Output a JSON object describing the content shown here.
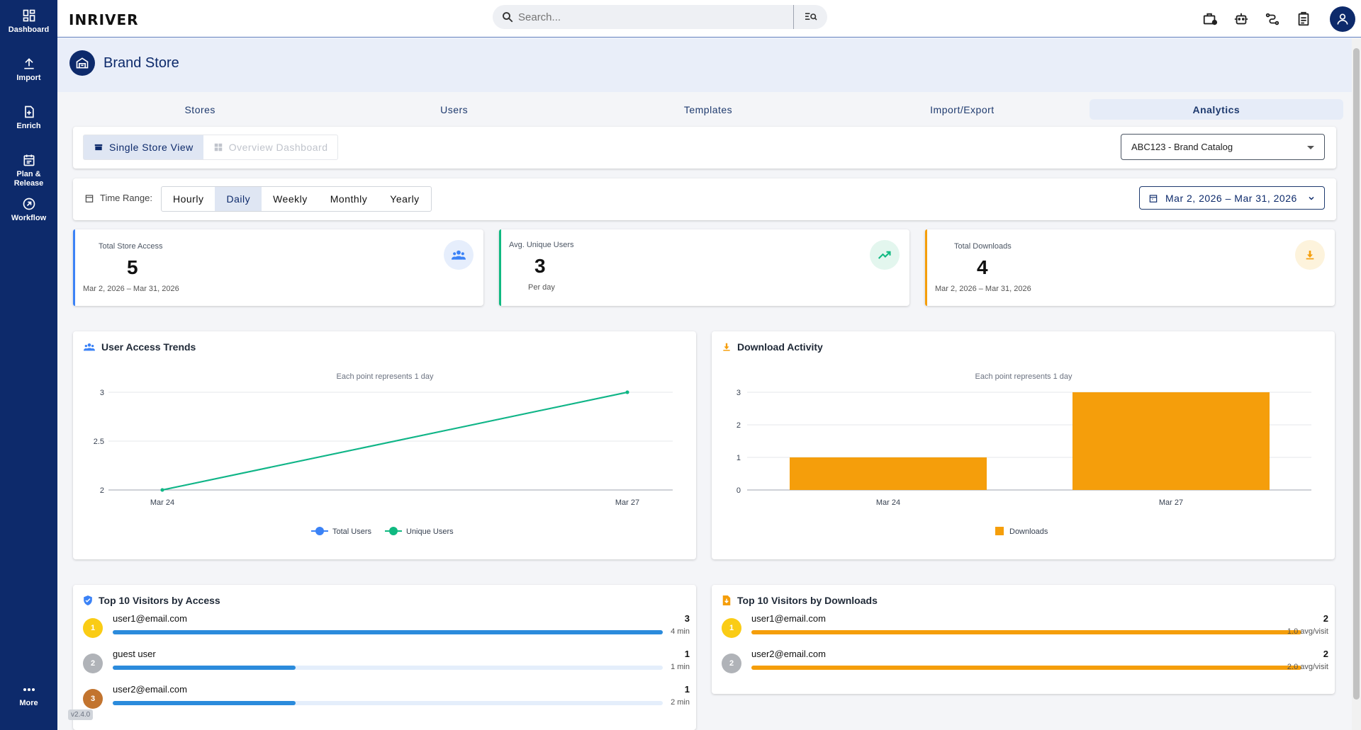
{
  "sidebar": {
    "items": [
      {
        "label": "Dashboard",
        "icon": "dashboard-icon"
      },
      {
        "label": "Import",
        "icon": "upload-icon"
      },
      {
        "label": "Enrich",
        "icon": "enrich-icon"
      },
      {
        "label": "Plan & Release",
        "icon": "calendar-icon"
      },
      {
        "label": "Workflow",
        "icon": "workflow-icon"
      }
    ],
    "more_label": "More",
    "version": "v2.4.0"
  },
  "topbar": {
    "logo": "INRIVER",
    "search_placeholder": "Search..."
  },
  "header": {
    "title": "Brand Store"
  },
  "tabs": [
    {
      "label": "Stores"
    },
    {
      "label": "Users"
    },
    {
      "label": "Templates"
    },
    {
      "label": "Import/Export"
    },
    {
      "label": "Analytics",
      "active": true
    }
  ],
  "view_toggle": {
    "single_label": "Single Store View",
    "overview_label": "Overview Dashboard",
    "store_selected": "ABC123 - Brand Catalog"
  },
  "time_range": {
    "label": "Time Range:",
    "options": [
      "Hourly",
      "Daily",
      "Weekly",
      "Monthly",
      "Yearly"
    ],
    "selected": "Daily",
    "date_range": "Mar 2, 2026 – Mar 31, 2026"
  },
  "kpis": {
    "access": {
      "label": "Total Store Access",
      "value": "5",
      "sub": "Mar 2, 2026 – Mar 31, 2026",
      "color": "#3b82f6"
    },
    "users": {
      "label": "Avg. Unique Users",
      "value": "3",
      "sub": "Per day",
      "color": "#10b981"
    },
    "downloads": {
      "label": "Total Downloads",
      "value": "4",
      "sub": "Mar 2, 2026 – Mar 31, 2026",
      "color": "#f59e0b"
    }
  },
  "access_chart": {
    "title": "User Access Trends",
    "subtitle": "Each point represents 1 day",
    "legend": [
      "Total Users",
      "Unique Users"
    ]
  },
  "download_chart": {
    "title": "Download Activity",
    "subtitle": "Each point represents 1 day",
    "legend": [
      "Downloads"
    ]
  },
  "chart_data": [
    {
      "type": "line",
      "subtitle": "Each point represents 1 day",
      "x": [
        "Mar 24",
        "Mar 27"
      ],
      "series": [
        {
          "name": "Total Users",
          "values": [
            2,
            3
          ],
          "color": "#3b82f6"
        },
        {
          "name": "Unique Users",
          "values": [
            2,
            3
          ],
          "color": "#10b981"
        }
      ],
      "yticks": [
        "2",
        "2.5",
        "3"
      ],
      "ylim": [
        2,
        3
      ],
      "legend": "bottom",
      "grid": true
    },
    {
      "type": "bar",
      "subtitle": "Each point represents 1 day",
      "categories": [
        "Mar 24",
        "Mar 27"
      ],
      "series": [
        {
          "name": "Downloads",
          "values": [
            1,
            3
          ],
          "color": "#f59e0b"
        }
      ],
      "yticks": [
        "0",
        "1",
        "2",
        "3"
      ],
      "ylim": [
        0,
        3
      ],
      "legend": "bottom",
      "grid": true
    }
  ],
  "top_access": {
    "title": "Top 10 Visitors by Access",
    "rows": [
      {
        "rank": "1",
        "name": "user1@email.com",
        "count": "3",
        "meta": "4 min",
        "fraction": 1.0,
        "rank_color": "#facc15"
      },
      {
        "rank": "2",
        "name": "guest user",
        "count": "1",
        "meta": "1 min",
        "fraction": 0.333,
        "rank_color": "#b0b3b8"
      },
      {
        "rank": "3",
        "name": "user2@email.com",
        "count": "1",
        "meta": "2 min",
        "fraction": 0.333,
        "rank_color": "#c2742f"
      }
    ]
  },
  "top_downloads": {
    "title": "Top 10 Visitors by Downloads",
    "rows": [
      {
        "rank": "1",
        "name": "user1@email.com",
        "count": "2",
        "meta": "1.0 avg/visit",
        "fraction": 1.0,
        "rank_color": "#facc15"
      },
      {
        "rank": "2",
        "name": "user2@email.com",
        "count": "2",
        "meta": "2.0 avg/visit",
        "fraction": 1.0,
        "rank_color": "#b0b3b8"
      }
    ]
  }
}
